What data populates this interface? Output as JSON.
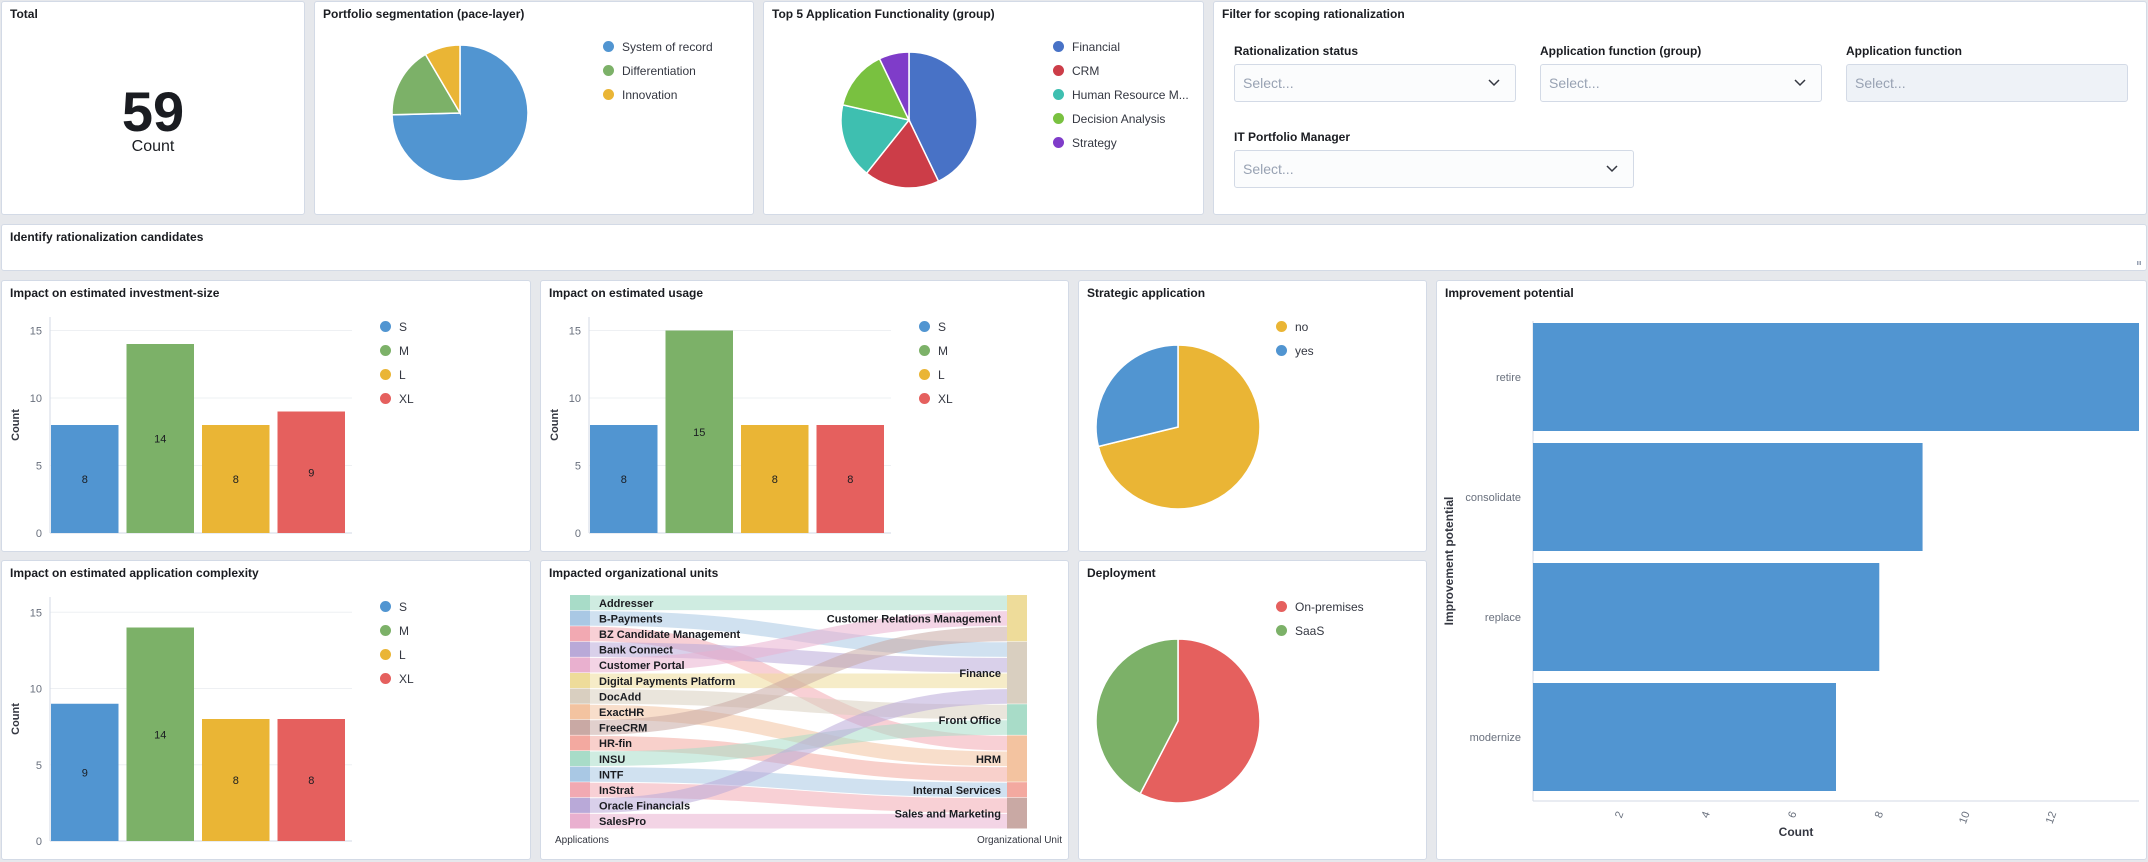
{
  "total": {
    "title": "Total",
    "value": "59",
    "label": "Count"
  },
  "portfolio": {
    "title": "Portfolio segmentation (pace-layer)",
    "slices": [
      {
        "name": "System of record",
        "value": 44,
        "color": "#5195d1"
      },
      {
        "name": "Differentiation",
        "value": 10,
        "color": "#7cb168"
      },
      {
        "name": "Innovation",
        "value": 5,
        "color": "#eab535"
      }
    ]
  },
  "top5": {
    "title": "Top 5 Application Functionality (group)",
    "slices": [
      {
        "name": "Financial",
        "value": 12,
        "color": "#4872c6"
      },
      {
        "name": "CRM",
        "value": 5,
        "color": "#cc3d48"
      },
      {
        "name": "Human Resource M...",
        "value": 5,
        "color": "#3ebfb0"
      },
      {
        "name": "Decision Analysis",
        "value": 4,
        "color": "#79c140"
      },
      {
        "name": "Strategy",
        "value": 2,
        "color": "#7f3cc9"
      }
    ]
  },
  "filter": {
    "title": "Filter for scoping rationalization",
    "fields": [
      {
        "label": "Rationalization status",
        "placeholder": "Select..."
      },
      {
        "label": "Application function (group)",
        "placeholder": "Select..."
      },
      {
        "label": "Application function",
        "placeholder": "Select..."
      },
      {
        "label": "IT Portfolio Manager",
        "placeholder": "Select..."
      }
    ]
  },
  "identify": {
    "title": "Identify rationalization candidates"
  },
  "investment": {
    "title": "Impact on estimated investment-size",
    "ylabel": "Count",
    "yticks": [
      0,
      5,
      10,
      15
    ],
    "ymax": 16,
    "bars": [
      {
        "name": "S",
        "value": 8,
        "color": "#5195d1"
      },
      {
        "name": "M",
        "value": 14,
        "color": "#7cb168"
      },
      {
        "name": "L",
        "value": 8,
        "color": "#eab535"
      },
      {
        "name": "XL",
        "value": 9,
        "color": "#e5605e"
      }
    ]
  },
  "usage": {
    "title": "Impact on estimated usage",
    "ylabel": "Count",
    "yticks": [
      0,
      5,
      10,
      15
    ],
    "ymax": 16,
    "bars": [
      {
        "name": "S",
        "value": 8,
        "color": "#5195d1"
      },
      {
        "name": "M",
        "value": 15,
        "color": "#7cb168"
      },
      {
        "name": "L",
        "value": 8,
        "color": "#eab535"
      },
      {
        "name": "XL",
        "value": 8,
        "color": "#e5605e"
      }
    ]
  },
  "complexity": {
    "title": "Impact on estimated application complexity",
    "ylabel": "Count",
    "yticks": [
      0,
      5,
      10,
      15
    ],
    "ymax": 16,
    "bars": [
      {
        "name": "S",
        "value": 9,
        "color": "#5195d1"
      },
      {
        "name": "M",
        "value": 14,
        "color": "#7cb168"
      },
      {
        "name": "L",
        "value": 8,
        "color": "#eab535"
      },
      {
        "name": "XL",
        "value": 8,
        "color": "#e5605e"
      }
    ]
  },
  "strategic": {
    "title": "Strategic application",
    "slices": [
      {
        "name": "no",
        "value": 42,
        "color": "#eab535"
      },
      {
        "name": "yes",
        "value": 17,
        "color": "#5195d1"
      }
    ]
  },
  "deployment": {
    "title": "Deployment",
    "slices": [
      {
        "name": "On-premises",
        "value": 34,
        "color": "#e5605e"
      },
      {
        "name": "SaaS",
        "value": 25,
        "color": "#7cb168"
      }
    ]
  },
  "improvement": {
    "title": "Improvement potential",
    "ylabel": "Improvement potential",
    "xlabel": "Count",
    "xticks": [
      2,
      4,
      6,
      8,
      10,
      12
    ],
    "xmax": 14,
    "bars": [
      {
        "name": "retire",
        "value": 14
      },
      {
        "name": "consolidate",
        "value": 9
      },
      {
        "name": "replace",
        "value": 8
      },
      {
        "name": "modernize",
        "value": 7
      }
    ],
    "color": "#5195d1"
  },
  "orgunits": {
    "title": "Impacted organizational units",
    "left_axis": "Applications",
    "right_axis": "Organizational Unit",
    "apps": [
      "Addresser",
      "B-Payments",
      "BZ Candidate Management",
      "Bank Connect",
      "Customer Portal",
      "Digital Payments Platform",
      "DocAdd",
      "ExactHR",
      "FreeCRM",
      "HR-fin",
      "INSU",
      "INTF",
      "InStrat",
      "Oracle Financials",
      "SalesPro"
    ],
    "app_colors": [
      "#a8dcc8",
      "#a9c8e4",
      "#f2a9b2",
      "#b9a9d8",
      "#e9b0cf",
      "#eedc9a",
      "#d9cfc0",
      "#f3c3a0",
      "#c9a9a4",
      "#f3a9a0",
      "#a8dcc8",
      "#a9c8e4",
      "#f2a9b2",
      "#b9a9d8",
      "#e9b0cf"
    ],
    "units": [
      "Customer Relations Management",
      "Finance",
      "Front Office",
      "HRM",
      "Internal Services",
      "Sales and Marketing"
    ],
    "unit_colors": [
      "#eedc9a",
      "#d9cfc0",
      "#a8dcc8",
      "#f3c3a0",
      "#f3a9a0",
      "#c9a9a4"
    ],
    "links": [
      [
        0,
        0
      ],
      [
        1,
        1
      ],
      [
        2,
        3
      ],
      [
        3,
        1
      ],
      [
        4,
        0
      ],
      [
        5,
        1
      ],
      [
        6,
        2
      ],
      [
        7,
        3
      ],
      [
        8,
        0
      ],
      [
        9,
        3
      ],
      [
        10,
        2
      ],
      [
        11,
        4
      ],
      [
        12,
        5
      ],
      [
        13,
        1
      ],
      [
        14,
        5
      ]
    ]
  }
}
